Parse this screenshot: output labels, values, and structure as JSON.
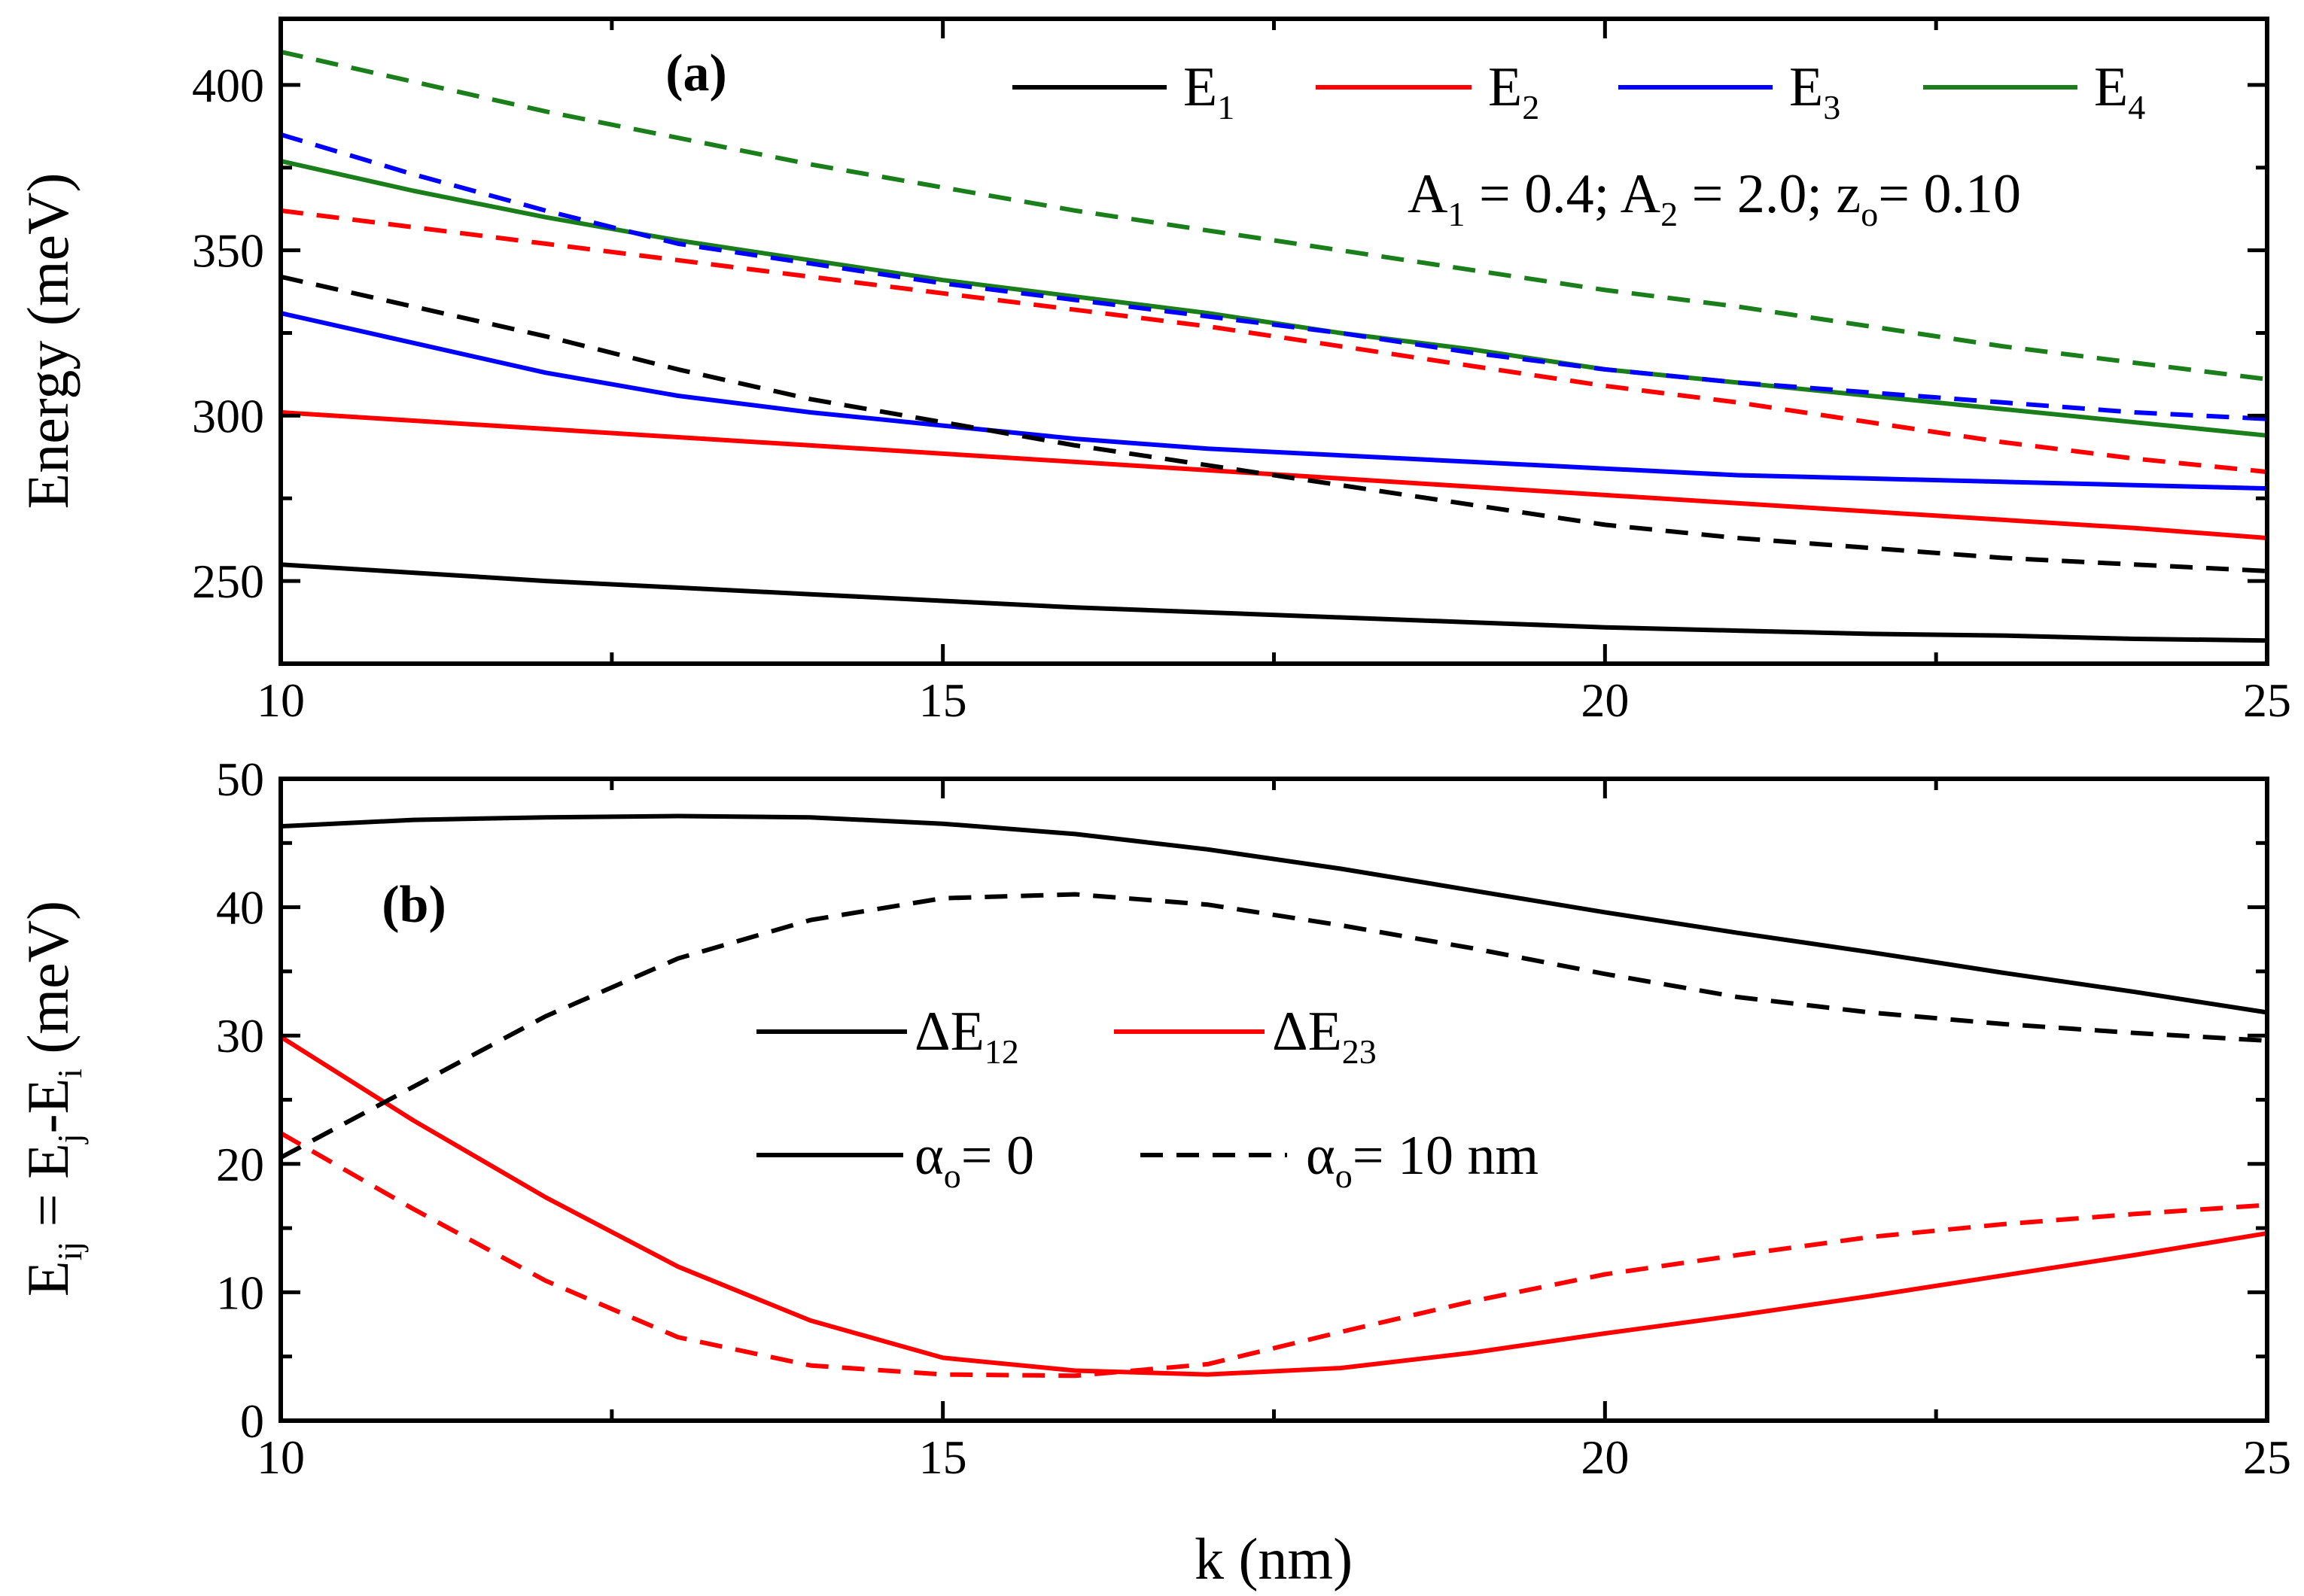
{
  "panels": [
    {
      "id": "a",
      "panel_label": "(a)",
      "ylabel": "Energy (meV)",
      "parameter_text": {
        "a1": "A",
        "a1_sub": "1",
        "a1_val": " = 0.4; A",
        "a2_sub": "2",
        "a2_val": " = 2.0; z",
        "z_sub": "o",
        "z_val": "= 0.10"
      },
      "legend": [
        {
          "name": "E",
          "sub": "1",
          "color": "#000000"
        },
        {
          "name": "E",
          "sub": "2",
          "color": "#ff0000"
        },
        {
          "name": "E",
          "sub": "3",
          "color": "#0000ff"
        },
        {
          "name": "E",
          "sub": "4",
          "color": "#1a7f1a"
        }
      ]
    },
    {
      "id": "b",
      "panel_label": "(b)",
      "ylabel_parts": {
        "main": "E",
        "sub1": "ij",
        "eq": " = E",
        "sub2": "j",
        "mid": "-E",
        "sub3": "i",
        "unit": " (meV)"
      },
      "legend_rows": [
        [
          {
            "label": "ΔE",
            "sub": "12",
            "color": "#000000",
            "dash": false
          },
          {
            "label": "ΔE",
            "sub": "23",
            "color": "#ff0000",
            "dash": false
          }
        ],
        [
          {
            "label": "α",
            "sub": "o",
            "suffix": "= 0",
            "color": "#000000",
            "dash": false
          },
          {
            "label": "α",
            "sub": "o",
            "suffix": "= 10 nm",
            "color": "#000000",
            "dash": true
          }
        ]
      ]
    }
  ],
  "xlabel": "k (nm)",
  "chart_data": [
    {
      "type": "line",
      "title": "(a)",
      "xlabel": "",
      "ylabel": "Energy (meV)",
      "xlim": [
        10,
        25
      ],
      "ylim": [
        225,
        420
      ],
      "x_ticks": [
        10,
        15,
        20,
        25
      ],
      "y_ticks": [
        250,
        300,
        350,
        400
      ],
      "annotation": "A1 = 0.4; A2 = 2.0; zo= 0.10",
      "x": [
        10,
        11,
        12,
        13,
        14,
        15,
        16,
        17,
        18,
        19,
        20,
        21,
        22,
        23,
        24,
        25
      ],
      "series": [
        {
          "name": "E1 (αo = 0)",
          "color": "#000000",
          "dash": false,
          "values": [
            255,
            252.5,
            250,
            248,
            246,
            244,
            242,
            240.5,
            239,
            237.5,
            236,
            235,
            234,
            233.5,
            232.5,
            232
          ]
        },
        {
          "name": "E2 (αo = 0)",
          "color": "#ff0000",
          "dash": false,
          "values": [
            301,
            298.5,
            296,
            293.5,
            291,
            288.5,
            286,
            283.5,
            281,
            278.5,
            276,
            273.5,
            271,
            268.5,
            266,
            263
          ]
        },
        {
          "name": "E3 (αo = 0)",
          "color": "#0000ff",
          "dash": false,
          "values": [
            331,
            322,
            313,
            306,
            301,
            297,
            293,
            290,
            288,
            286,
            284,
            282,
            281,
            280,
            279,
            278
          ]
        },
        {
          "name": "E4 (αo = 0)",
          "color": "#1a7f1a",
          "dash": false,
          "values": [
            377,
            368,
            360,
            353,
            347,
            341,
            336,
            331,
            325,
            320,
            314,
            310,
            306,
            302,
            298,
            294
          ]
        },
        {
          "name": "E1 (αo = 10 nm)",
          "color": "#000000",
          "dash": true,
          "values": [
            342,
            333,
            324,
            314,
            305,
            298,
            291,
            285,
            279,
            273,
            267,
            263,
            260,
            257,
            255,
            253
          ]
        },
        {
          "name": "E2 (αo = 10 nm)",
          "color": "#ff0000",
          "dash": true,
          "values": [
            362,
            357,
            352,
            347,
            342,
            337,
            332,
            327,
            321,
            315,
            309,
            304,
            298,
            292,
            287,
            283
          ]
        },
        {
          "name": "E3 (αo = 10 nm)",
          "color": "#0000ff",
          "dash": true,
          "values": [
            385,
            373,
            362,
            352,
            346,
            340,
            335,
            330,
            325,
            319,
            314,
            310,
            307,
            304,
            301,
            299
          ]
        },
        {
          "name": "E4 (αo = 10 nm)",
          "color": "#1a7f1a",
          "dash": true,
          "values": [
            410,
            401,
            392,
            384,
            376,
            369,
            362,
            356,
            350,
            344,
            338,
            333,
            327,
            321,
            316,
            311
          ]
        }
      ]
    },
    {
      "type": "line",
      "title": "(b)",
      "xlabel": "k (nm)",
      "ylabel": "Eij = Ej-Ei (meV)",
      "xlim": [
        10,
        25
      ],
      "ylim": [
        0,
        50
      ],
      "x_ticks": [
        10,
        15,
        20,
        25
      ],
      "y_ticks": [
        0,
        10,
        20,
        30,
        40,
        50
      ],
      "x": [
        10,
        11,
        12,
        13,
        14,
        15,
        16,
        17,
        18,
        19,
        20,
        21,
        22,
        23,
        24,
        25
      ],
      "series": [
        {
          "name": "ΔE12 (αo = 0)",
          "color": "#000000",
          "dash": false,
          "values": [
            46.3,
            46.8,
            47,
            47.1,
            47,
            46.5,
            45.7,
            44.5,
            43,
            41.3,
            39.6,
            38,
            36.5,
            34.9,
            33.4,
            31.8
          ]
        },
        {
          "name": "ΔE23 (αo = 0)",
          "color": "#ff0000",
          "dash": false,
          "values": [
            29.9,
            23.4,
            17.4,
            12,
            7.8,
            4.9,
            3.9,
            3.6,
            4.1,
            5.3,
            6.8,
            8.2,
            9.7,
            11.3,
            12.9,
            14.6
          ]
        },
        {
          "name": "ΔE12 (αo = 10 nm)",
          "color": "#000000",
          "dash": true,
          "values": [
            20.5,
            26,
            31.5,
            36,
            39,
            40.7,
            41,
            40.2,
            38.6,
            36.8,
            34.8,
            33,
            31.8,
            30.9,
            30.2,
            29.6
          ]
        },
        {
          "name": "ΔE23 (αo = 10 nm)",
          "color": "#ff0000",
          "dash": true,
          "values": [
            22.4,
            16.5,
            10.9,
            6.5,
            4.3,
            3.6,
            3.5,
            4.4,
            6.9,
            9.3,
            11.4,
            12.9,
            14.3,
            15.3,
            16.1,
            16.8
          ]
        }
      ]
    }
  ]
}
